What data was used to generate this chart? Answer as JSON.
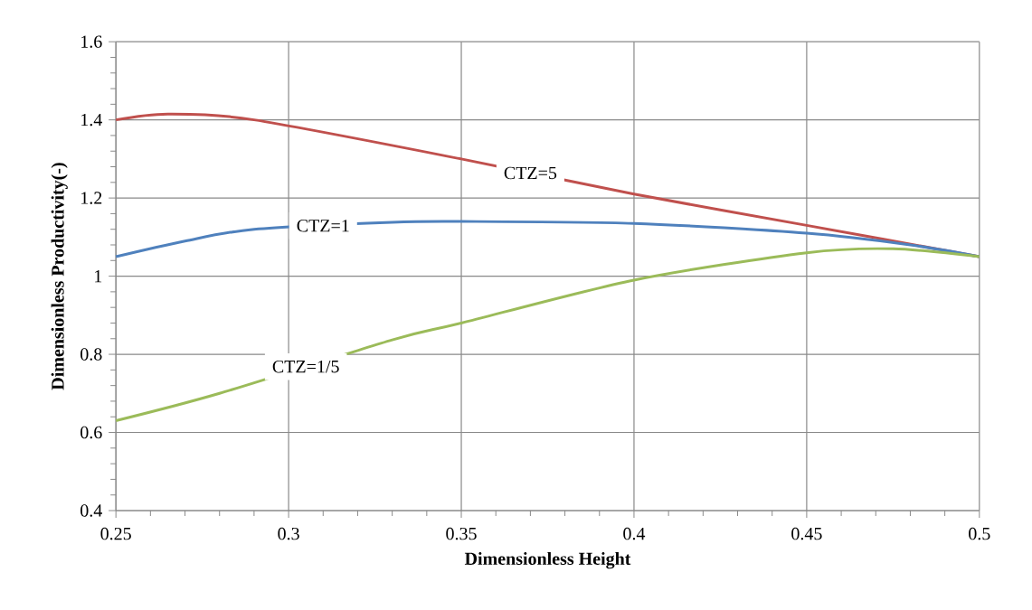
{
  "chart_data": {
    "type": "line",
    "xlabel": "Dimensionless Height",
    "ylabel": "Dimensionless Productivity(-)",
    "xlim": [
      0.25,
      0.5
    ],
    "ylim": [
      0.4,
      1.6
    ],
    "xticks": [
      0.25,
      0.3,
      0.35,
      0.4,
      0.45,
      0.5
    ],
    "yticks": [
      0.4,
      0.6,
      0.8,
      1,
      1.2,
      1.4,
      1.6
    ],
    "grid": true,
    "legend": false,
    "marker": "none",
    "line_style": "solid",
    "series": [
      {
        "name": "CTZ=5",
        "color": "#c0504d",
        "x": [
          0.25,
          0.265,
          0.29,
          0.35,
          0.4,
          0.45,
          0.5
        ],
        "values": [
          1.4,
          1.415,
          1.4,
          1.3,
          1.21,
          1.13,
          1.05
        ]
      },
      {
        "name": "CTZ=1",
        "color": "#4f81bd",
        "x": [
          0.25,
          0.27,
          0.29,
          0.33,
          0.35,
          0.4,
          0.45,
          0.48,
          0.5
        ],
        "values": [
          1.05,
          1.09,
          1.12,
          1.138,
          1.14,
          1.135,
          1.11,
          1.08,
          1.05
        ]
      },
      {
        "name": "CTZ=1/5",
        "color": "#9bbb59",
        "x": [
          0.25,
          0.28,
          0.33,
          0.35,
          0.4,
          0.45,
          0.475,
          0.5
        ],
        "values": [
          0.63,
          0.7,
          0.837,
          0.88,
          0.99,
          1.06,
          1.07,
          1.05
        ]
      }
    ]
  }
}
